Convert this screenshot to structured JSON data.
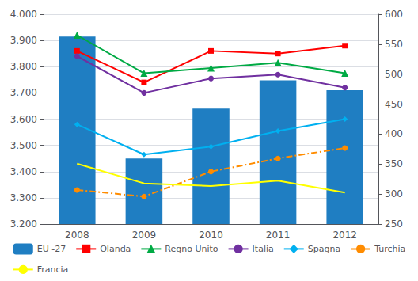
{
  "chart_data": {
    "type": "bar",
    "categories": [
      "2008",
      "2009",
      "2010",
      "2011",
      "2012"
    ],
    "series": [
      {
        "name": "EU -27",
        "type": "bar",
        "color": "#1F7EC2",
        "values": [
          3.915,
          3.45,
          3.64,
          3.748,
          3.71
        ]
      },
      {
        "name": "Olanda",
        "type": "line",
        "color": "#FF0000",
        "marker": "square",
        "line_style": "solid",
        "values": [
          3.86,
          3.74,
          3.86,
          3.85,
          3.88
        ]
      },
      {
        "name": "Regno Unito",
        "type": "line",
        "color": "#00AA44",
        "marker": "triangle",
        "line_style": "solid",
        "values": [
          3.92,
          3.775,
          3.795,
          3.815,
          3.775
        ]
      },
      {
        "name": "Italia",
        "type": "line",
        "color": "#7030A0",
        "marker": "circle",
        "line_style": "solid",
        "values": [
          3.84,
          3.7,
          3.755,
          3.77,
          3.72
        ]
      },
      {
        "name": "Spagna",
        "type": "line",
        "color": "#00B0F0",
        "marker": "diamond",
        "line_style": "solid",
        "values": [
          3.58,
          3.465,
          3.495,
          3.555,
          3.6
        ]
      },
      {
        "name": "Turchia",
        "type": "line",
        "color": "#FF8C00",
        "marker": "circle",
        "line_style": "dashdot",
        "values": [
          3.33,
          3.305,
          3.4,
          3.45,
          3.49
        ]
      },
      {
        "name": "Francia",
        "type": "line",
        "color": "#FFFF00",
        "marker": "none",
        "line_style": "solid",
        "values": [
          3.43,
          3.355,
          3.345,
          3.365,
          3.32
        ]
      }
    ],
    "ylim": [
      3.2,
      4.0
    ],
    "yticks": [
      {
        "value": 3.2,
        "label": "3.200"
      },
      {
        "value": 3.3,
        "label": "3.300"
      },
      {
        "value": 3.4,
        "label": "3.400"
      },
      {
        "value": 3.5,
        "label": "3.500"
      },
      {
        "value": 3.6,
        "label": "3.600"
      },
      {
        "value": 3.7,
        "label": "3.700"
      },
      {
        "value": 3.8,
        "label": "3.800"
      },
      {
        "value": 3.9,
        "label": "3.900"
      },
      {
        "value": 4.0,
        "label": "4.000"
      }
    ],
    "y2lim": [
      250,
      600
    ],
    "y2ticks": [
      250,
      300,
      350,
      400,
      450,
      500,
      550,
      600
    ],
    "grid": true,
    "legend": "bottom"
  }
}
